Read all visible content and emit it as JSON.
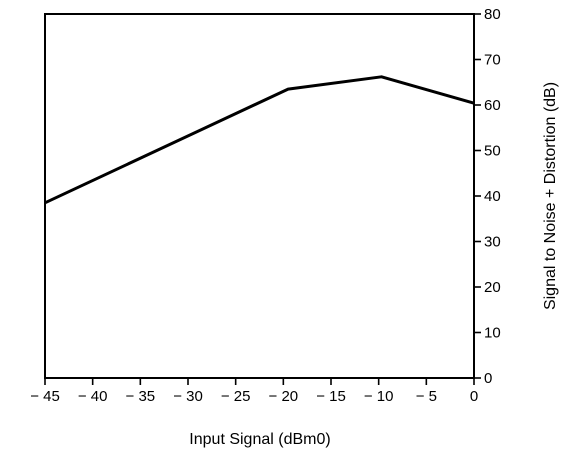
{
  "chart_data": {
    "type": "line",
    "title": "",
    "xlabel": "Input Signal (dBm0)",
    "ylabel": "Signal to Noise + Distortion (dB)",
    "xlim": [
      -45,
      0
    ],
    "ylim": [
      0,
      80
    ],
    "x_ticks": [
      -45,
      -40,
      -35,
      -30,
      -25,
      -20,
      -15,
      -10,
      -5,
      0
    ],
    "x_tick_labels": [
      "− 45",
      "− 40",
      "− 35",
      "− 30",
      "− 25",
      "− 20",
      "− 15",
      "− 10",
      "− 5",
      "0"
    ],
    "y_ticks": [
      0,
      10,
      20,
      30,
      40,
      50,
      60,
      70,
      80
    ],
    "y_tick_labels": [
      "0",
      "10",
      "20",
      "30",
      "40",
      "50",
      "60",
      "70",
      "80"
    ],
    "y_axis_side": "right",
    "grid": false,
    "legend": "none",
    "series": [
      {
        "x": [
          -45,
          -19.5,
          -9.7,
          0
        ],
        "y": [
          38.5,
          63.5,
          66.2,
          60.4
        ]
      }
    ],
    "colors": {
      "line": "#000000",
      "axis": "#000000",
      "background": "#ffffff"
    }
  }
}
